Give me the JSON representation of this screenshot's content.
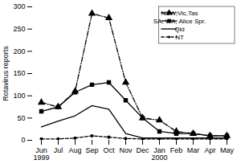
{
  "chart_data": {
    "type": "line",
    "categories": [
      "Jun\n1999",
      "Jul",
      "Aug",
      "Sep",
      "Oct",
      "Nov",
      "Dec",
      "Jan\n2000",
      "Feb",
      "Mar",
      "Apr",
      "May"
    ],
    "series": [
      {
        "name": "NSW,Vic,Tas",
        "color": "black",
        "marker": "triangle",
        "line_style": "dashdot",
        "values": [
          85,
          75,
          110,
          285,
          275,
          130,
          50,
          45,
          20,
          15,
          10,
          10
        ]
      },
      {
        "name": "SA, WA, Alice Spr.",
        "color": "black",
        "marker": "square",
        "line_style": "solid",
        "values": [
          65,
          75,
          108,
          125,
          130,
          90,
          50,
          20,
          15,
          15,
          10,
          10
        ]
      },
      {
        "name": "Qld",
        "color": "black",
        "line_style": "solid",
        "values": [
          30,
          43,
          55,
          78,
          70,
          15,
          5,
          5,
          5,
          5,
          5,
          5
        ]
      },
      {
        "name": "NT",
        "color": "black",
        "marker": "point",
        "line_style": "dashed",
        "values": [
          3,
          3,
          5,
          10,
          7,
          4,
          3,
          3,
          3,
          3,
          3,
          3
        ]
      }
    ],
    "ylabel": "Rotavirus reports",
    "ylim": [
      0,
      300
    ],
    "yticks": [
      0,
      50,
      100,
      150,
      200,
      250,
      300
    ],
    "grid": false,
    "legend": "upper right"
  }
}
